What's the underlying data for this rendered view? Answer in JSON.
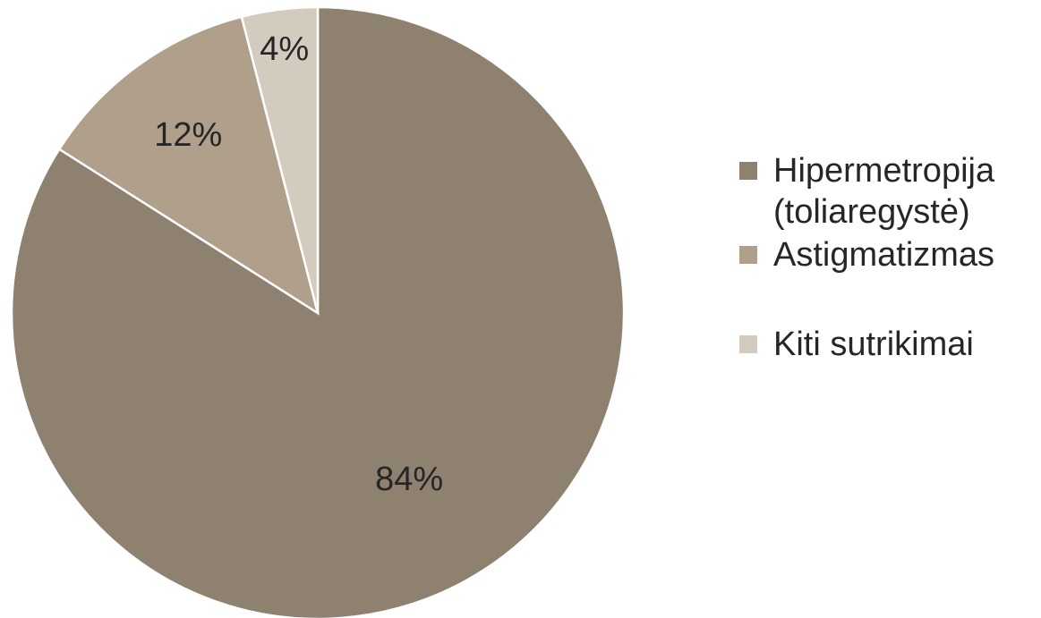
{
  "chart_data": {
    "type": "pie",
    "slices": [
      {
        "label": "Hipermetropija\n(toliaregystė)",
        "value": 84,
        "display": "84%",
        "color": "#8f8170"
      },
      {
        "label": "Astigmatizmas",
        "value": 12,
        "display": "12%",
        "color": "#b0a08b"
      },
      {
        "label": "Kiti sutrikimai",
        "value": 4,
        "display": "4%",
        "color": "#d4cbbf"
      }
    ],
    "start_angle_deg": 0,
    "direction": "clockwise",
    "legend_position": "right"
  }
}
